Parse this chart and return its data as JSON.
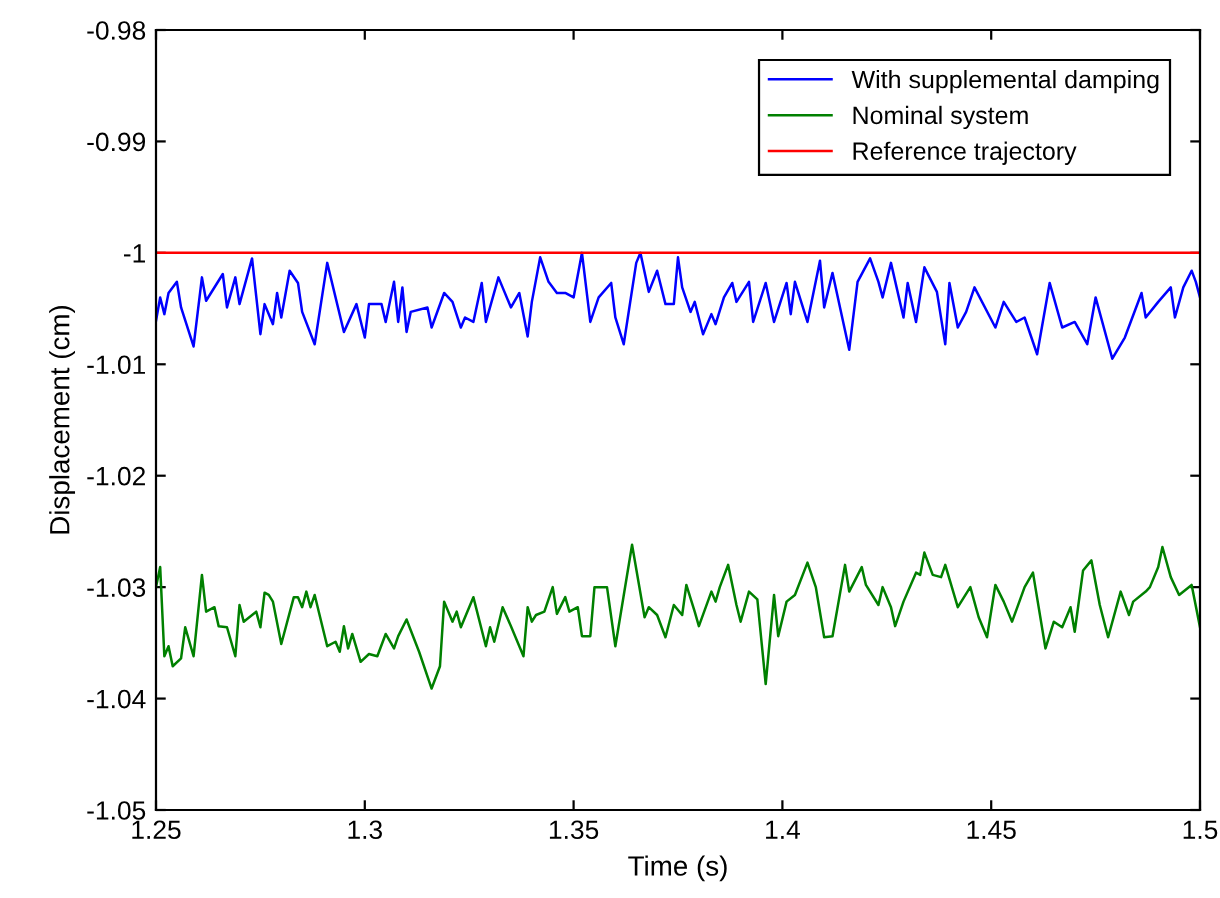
{
  "chart_data": {
    "type": "line",
    "xlabel": "Time (s)",
    "ylabel": "Displacement (cm)",
    "xlim": [
      1.25,
      1.5
    ],
    "ylim": [
      -1.05,
      -0.98
    ],
    "xticks": [
      1.25,
      1.3,
      1.35,
      1.4,
      1.45,
      1.5
    ],
    "yticks": [
      -1.05,
      -1.04,
      -1.03,
      -1.02,
      -1.01,
      -1,
      -0.99,
      -0.98
    ],
    "grid": false,
    "legend": "top right",
    "marker": "none",
    "line_style": "solid",
    "series": [
      {
        "name": "With supplemental damping",
        "color": "#0000ff",
        "x": [
          1.25,
          1.251,
          1.252,
          1.253,
          1.255,
          1.256,
          1.259,
          1.261,
          1.262,
          1.266,
          1.267,
          1.269,
          1.27,
          1.273,
          1.275,
          1.276,
          1.278,
          1.279,
          1.28,
          1.282,
          1.284,
          1.285,
          1.288,
          1.291,
          1.295,
          1.298,
          1.3,
          1.301,
          1.304,
          1.305,
          1.307,
          1.308,
          1.309,
          1.31,
          1.311,
          1.315,
          1.316,
          1.319,
          1.321,
          1.323,
          1.324,
          1.326,
          1.328,
          1.329,
          1.332,
          1.335,
          1.337,
          1.339,
          1.34,
          1.342,
          1.344,
          1.346,
          1.348,
          1.35,
          1.352,
          1.354,
          1.356,
          1.359,
          1.36,
          1.362,
          1.365,
          1.366,
          1.368,
          1.37,
          1.372,
          1.374,
          1.375,
          1.376,
          1.378,
          1.379,
          1.381,
          1.383,
          1.384,
          1.386,
          1.388,
          1.389,
          1.392,
          1.393,
          1.396,
          1.398,
          1.401,
          1.402,
          1.403,
          1.406,
          1.409,
          1.41,
          1.412,
          1.416,
          1.418,
          1.421,
          1.423,
          1.424,
          1.426,
          1.429,
          1.43,
          1.432,
          1.434,
          1.437,
          1.439,
          1.44,
          1.442,
          1.444,
          1.446,
          1.451,
          1.453,
          1.456,
          1.458,
          1.461,
          1.464,
          1.467,
          1.47,
          1.473,
          1.475,
          1.479,
          1.482,
          1.486,
          1.487,
          1.49,
          1.493,
          1.494,
          1.496,
          1.498,
          1.499,
          1.5
        ],
        "values": [
          -1.0061,
          -1.004,
          -1.0055,
          -1.0036,
          -1.0026,
          -1.0049,
          -1.0084,
          -1.0022,
          -1.0043,
          -1.0019,
          -1.0049,
          -1.0022,
          -1.0046,
          -1.0005,
          -1.0073,
          -1.0046,
          -1.0064,
          -1.0036,
          -1.0058,
          -1.0016,
          -1.0027,
          -1.0053,
          -1.0082,
          -1.0009,
          -1.0071,
          -1.0046,
          -1.0076,
          -1.0046,
          -1.0046,
          -1.0062,
          -1.0026,
          -1.0062,
          -1.0031,
          -1.0071,
          -1.0053,
          -1.0049,
          -1.0067,
          -1.0036,
          -1.0044,
          -1.0067,
          -1.0058,
          -1.0062,
          -1.0027,
          -1.0062,
          -1.0022,
          -1.0049,
          -1.0036,
          -1.0075,
          -1.0044,
          -1.0004,
          -1.0026,
          -1.0036,
          -1.0036,
          -1.004,
          -1.0,
          -1.0062,
          -1.004,
          -1.0027,
          -1.0058,
          -1.0082,
          -1.0009,
          -1.0,
          -1.0035,
          -1.0016,
          -1.0046,
          -1.0046,
          -1.0004,
          -1.0031,
          -1.0053,
          -1.0044,
          -1.0073,
          -1.0055,
          -1.0064,
          -1.004,
          -1.0027,
          -1.0044,
          -1.0026,
          -1.0062,
          -1.0027,
          -1.0062,
          -1.0027,
          -1.0055,
          -1.0026,
          -1.0062,
          -1.0007,
          -1.0049,
          -1.0018,
          -1.0087,
          -1.0026,
          -1.0005,
          -1.0026,
          -1.004,
          -1.0009,
          -1.0058,
          -1.0027,
          -1.0062,
          -1.0013,
          -1.0035,
          -1.0082,
          -1.0027,
          -1.0067,
          -1.0053,
          -1.0031,
          -1.0067,
          -1.0044,
          -1.0062,
          -1.0058,
          -1.0091,
          -1.0027,
          -1.0067,
          -1.0062,
          -1.0082,
          -1.004,
          -1.0095,
          -1.0076,
          -1.0036,
          -1.0058,
          -1.0044,
          -1.0031,
          -1.0058,
          -1.0031,
          -1.0016,
          -1.0026,
          -1.004
        ]
      },
      {
        "name": "Nominal system",
        "color": "#008000",
        "x": [
          1.25,
          1.251,
          1.252,
          1.253,
          1.254,
          1.256,
          1.257,
          1.259,
          1.261,
          1.262,
          1.264,
          1.265,
          1.267,
          1.269,
          1.27,
          1.271,
          1.274,
          1.275,
          1.276,
          1.277,
          1.278,
          1.28,
          1.283,
          1.284,
          1.285,
          1.286,
          1.287,
          1.288,
          1.291,
          1.293,
          1.294,
          1.295,
          1.296,
          1.297,
          1.299,
          1.301,
          1.303,
          1.305,
          1.307,
          1.308,
          1.31,
          1.313,
          1.316,
          1.318,
          1.319,
          1.321,
          1.322,
          1.323,
          1.326,
          1.329,
          1.33,
          1.331,
          1.333,
          1.335,
          1.338,
          1.339,
          1.34,
          1.341,
          1.343,
          1.345,
          1.346,
          1.348,
          1.349,
          1.351,
          1.352,
          1.354,
          1.355,
          1.358,
          1.36,
          1.364,
          1.367,
          1.368,
          1.37,
          1.372,
          1.374,
          1.376,
          1.377,
          1.379,
          1.38,
          1.383,
          1.384,
          1.385,
          1.387,
          1.389,
          1.39,
          1.392,
          1.394,
          1.396,
          1.398,
          1.399,
          1.401,
          1.403,
          1.406,
          1.408,
          1.41,
          1.412,
          1.415,
          1.416,
          1.419,
          1.42,
          1.423,
          1.424,
          1.426,
          1.427,
          1.429,
          1.432,
          1.433,
          1.434,
          1.436,
          1.438,
          1.439,
          1.442,
          1.445,
          1.447,
          1.449,
          1.451,
          1.453,
          1.455,
          1.458,
          1.46,
          1.463,
          1.465,
          1.467,
          1.469,
          1.47,
          1.472,
          1.474,
          1.476,
          1.478,
          1.481,
          1.483,
          1.484,
          1.487,
          1.488,
          1.49,
          1.491,
          1.493,
          1.495,
          1.498,
          1.5
        ],
        "values": [
          -1.03,
          -1.0282,
          -1.0362,
          -1.0353,
          -1.0371,
          -1.0364,
          -1.0336,
          -1.0362,
          -1.0289,
          -1.0322,
          -1.0318,
          -1.0335,
          -1.0336,
          -1.0362,
          -1.0316,
          -1.0331,
          -1.0322,
          -1.0336,
          -1.0305,
          -1.0307,
          -1.0313,
          -1.0351,
          -1.0309,
          -1.0309,
          -1.0318,
          -1.0304,
          -1.0318,
          -1.0307,
          -1.0353,
          -1.0349,
          -1.0358,
          -1.0335,
          -1.0355,
          -1.0342,
          -1.0367,
          -1.036,
          -1.0362,
          -1.0342,
          -1.0355,
          -1.0344,
          -1.0329,
          -1.0358,
          -1.0391,
          -1.0371,
          -1.0313,
          -1.0331,
          -1.0322,
          -1.0336,
          -1.0309,
          -1.0353,
          -1.0336,
          -1.0349,
          -1.0318,
          -1.0335,
          -1.0362,
          -1.0318,
          -1.0331,
          -1.0325,
          -1.0322,
          -1.03,
          -1.0324,
          -1.0309,
          -1.0322,
          -1.0318,
          -1.0344,
          -1.0344,
          -1.03,
          -1.03,
          -1.0353,
          -1.0262,
          -1.0327,
          -1.0318,
          -1.0325,
          -1.0345,
          -1.0316,
          -1.0325,
          -1.0298,
          -1.0322,
          -1.0335,
          -1.0304,
          -1.0313,
          -1.03,
          -1.028,
          -1.0316,
          -1.0331,
          -1.0304,
          -1.0311,
          -1.0387,
          -1.0307,
          -1.0344,
          -1.0313,
          -1.0307,
          -1.0278,
          -1.03,
          -1.0345,
          -1.0344,
          -1.028,
          -1.0304,
          -1.0282,
          -1.0298,
          -1.0316,
          -1.03,
          -1.0318,
          -1.0335,
          -1.0313,
          -1.0287,
          -1.0289,
          -1.0269,
          -1.0289,
          -1.0291,
          -1.028,
          -1.0318,
          -1.03,
          -1.0327,
          -1.0345,
          -1.0298,
          -1.0313,
          -1.0331,
          -1.03,
          -1.0287,
          -1.0355,
          -1.0331,
          -1.0336,
          -1.0318,
          -1.034,
          -1.0285,
          -1.0276,
          -1.0316,
          -1.0345,
          -1.0304,
          -1.0325,
          -1.0313,
          -1.0304,
          -1.03,
          -1.0282,
          -1.0264,
          -1.0291,
          -1.0307,
          -1.0298,
          -1.0336
        ]
      },
      {
        "name": "Reference trajectory",
        "color": "#ff0000",
        "x": [
          1.25,
          1.5
        ],
        "values": [
          -1,
          -1
        ]
      }
    ]
  }
}
